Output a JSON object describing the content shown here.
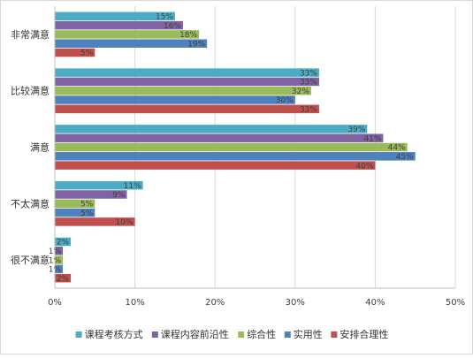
{
  "chart_data": {
    "type": "bar",
    "orientation": "horizontal",
    "categories": [
      "非常满意",
      "比较满意",
      "满意",
      "不太满意",
      "很不满意"
    ],
    "series": [
      {
        "name": "课程考核方式",
        "color": "#4bacc6",
        "values": [
          15,
          33,
          39,
          11,
          2
        ]
      },
      {
        "name": "课程内容前沿性",
        "color": "#8064a2",
        "values": [
          16,
          33,
          41,
          9,
          1
        ]
      },
      {
        "name": "综合性",
        "color": "#9bbb59",
        "values": [
          18,
          32,
          44,
          5,
          1
        ]
      },
      {
        "name": "实用性",
        "color": "#4f81bd",
        "values": [
          19,
          30,
          45,
          5,
          1
        ]
      },
      {
        "name": "安排合理性",
        "color": "#c0504d",
        "values": [
          5,
          33,
          40,
          10,
          2
        ]
      }
    ],
    "xlim": [
      0,
      50
    ],
    "xticks": [
      "0%",
      "10%",
      "20%",
      "30%",
      "40%",
      "50%"
    ],
    "value_suffix": "%",
    "grid": "vertical",
    "legend_position": "bottom",
    "title": "",
    "xlabel": "",
    "ylabel": ""
  }
}
